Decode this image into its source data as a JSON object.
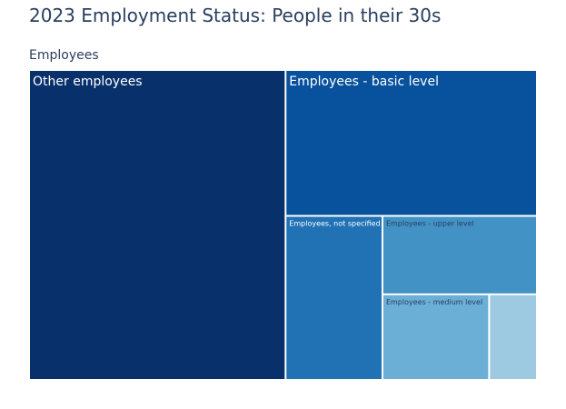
{
  "title": "2023 Employment Status: People in their 30s",
  "breadcrumb": "Employees",
  "chart_data": {
    "type": "treemap",
    "root": "Employees",
    "items": [
      {
        "label": "Other employees",
        "value": 50.5,
        "color": "#08306b",
        "text_color": "#ffffff"
      },
      {
        "label": "Employees - basic level",
        "value": 23.3,
        "color": "#08519c",
        "text_color": "#ffffff"
      },
      {
        "label": "Employees, not specified",
        "value": 10.1,
        "color": "#2171b5",
        "text_color": "#ffffff"
      },
      {
        "label": "Employees - upper level",
        "value": 7.7,
        "color": "#4292c6",
        "text_color": "#2a3f5f"
      },
      {
        "label": "Employees - medium level",
        "value": 5.8,
        "color": "#6baed6",
        "text_color": "#2a3f5f"
      },
      {
        "label": "",
        "value": 2.6,
        "color": "#9ecae1",
        "text_color": "#2a3f5f"
      }
    ]
  }
}
